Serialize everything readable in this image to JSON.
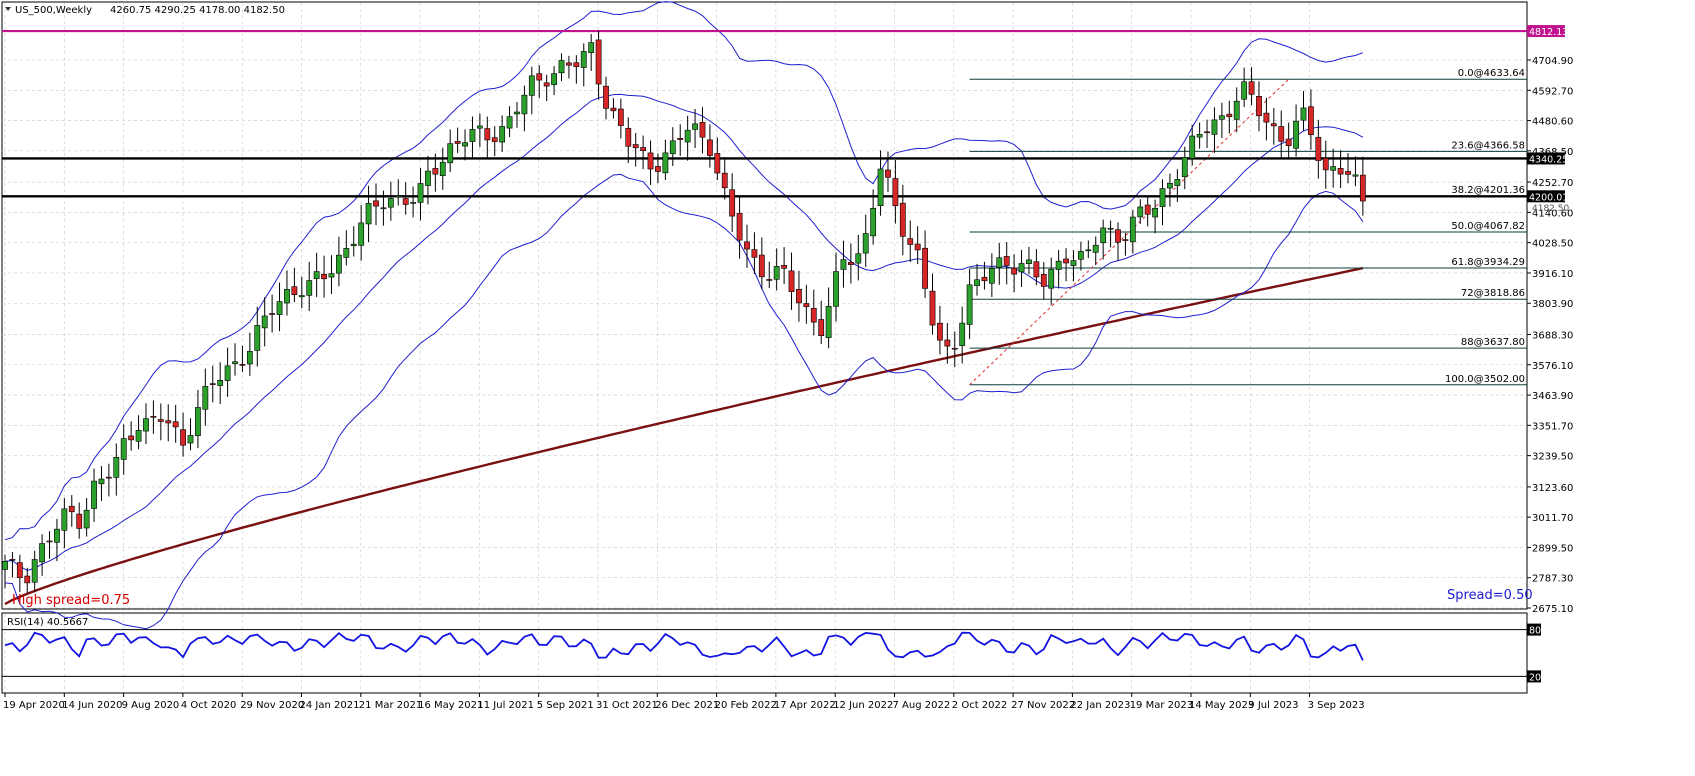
{
  "header": {
    "symbol": "US_500,Weekly",
    "ohlc": "4260.75 4290.25 4178.00 4182.50"
  },
  "spread": {
    "high_label": "High spread=0.75",
    "current_label": "Spread=0.50"
  },
  "colors": {
    "bull": "#2ca02c",
    "bear": "#d62728",
    "bollinger": "#1f1fd0",
    "ma200": "#7a1010",
    "resistance": "#c0118e",
    "fib": "#0a3d3d",
    "rsi": "#1414e0"
  },
  "chart_data": {
    "type": "candlestick",
    "price_range": [
      2675.1,
      4880.0
    ],
    "price_ticks": [
      "4704.90",
      "4592.70",
      "4480.60",
      "4368.50",
      "4252.70",
      "4140.60",
      "4028.50",
      "3916.10",
      "3803.90",
      "3688.30",
      "3576.10",
      "3463.90",
      "3351.70",
      "3239.50",
      "3123.60",
      "3011.70",
      "2899.50",
      "2787.30",
      "2675.10"
    ],
    "date_labels": [
      "19 Apr 2020",
      "14 Jun 2020",
      "9 Aug 2020",
      "4 Oct 2020",
      "29 Nov 2020",
      "24 Jan 2021",
      "21 Mar 2021",
      "16 May 2021",
      "11 Jul 2021",
      "5 Sep 2021",
      "31 Oct 2021",
      "26 Dec 2021",
      "20 Feb 2022",
      "17 Apr 2022",
      "12 Jun 2022",
      "7 Aug 2022",
      "2 Oct 2022",
      "27 Nov 2022",
      "22 Jan 2023",
      "19 Mar 2023",
      "14 May 2023",
      "9 Jul 2023",
      "3 Sep 2023"
    ],
    "candle_count": 184,
    "horizontal_levels": [
      {
        "label": "4812.13",
        "value": 4812.13,
        "kind": "resistance"
      },
      {
        "label": "4340.25",
        "value": 4340.25,
        "kind": "sr"
      },
      {
        "label": "4200.01",
        "value": 4200.01,
        "kind": "sr"
      }
    ],
    "current_price_label": "4182.50",
    "fibonacci": {
      "start_index": 130,
      "low": 3502.0,
      "high": 4633.64,
      "levels": [
        {
          "label": "0.0@4633.64",
          "value": 4633.64
        },
        {
          "label": "23.6@4366.58",
          "value": 4366.58
        },
        {
          "label": "38.2@4201.36",
          "value": 4201.36
        },
        {
          "label": "50.0@4067.82",
          "value": 4067.82
        },
        {
          "label": "61.8@3934.29",
          "value": 3934.29
        },
        {
          "label": "72@3818.86",
          "value": 3818.86
        },
        {
          "label": "88@3637.80",
          "value": 3637.8
        },
        {
          "label": "100.0@3502.00",
          "value": 3502.0
        }
      ]
    },
    "rsi": {
      "label": "RSI(14) 40.5667",
      "upper_label": "80",
      "lower_label": "20",
      "upper": 80,
      "lower": 20,
      "range": [
        0,
        100
      ]
    }
  }
}
